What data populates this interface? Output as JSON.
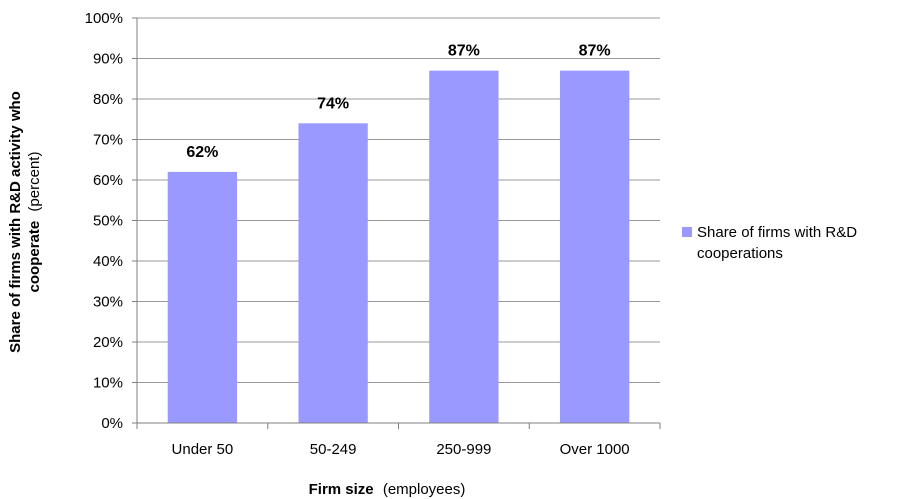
{
  "chart_data": {
    "type": "bar",
    "categories": [
      "Under 50",
      "50-249",
      "250-999",
      "Over 1000"
    ],
    "series": [
      {
        "name": "Share of firms with R&D cooperations",
        "values": [
          62,
          74,
          87,
          87
        ],
        "color": "#9999ff"
      }
    ],
    "data_labels": [
      "62%",
      "74%",
      "87%",
      "87%"
    ],
    "xlabel": {
      "bold": "Firm size",
      "normal": "(employees)"
    },
    "ylabel": {
      "line1": "Share of firms with R&D activity who",
      "line2_bold": "cooperate",
      "line2_normal": "(percent)"
    },
    "yticks": [
      "0%",
      "10%",
      "20%",
      "30%",
      "40%",
      "50%",
      "60%",
      "70%",
      "80%",
      "90%",
      "100%"
    ],
    "ylim": [
      0,
      100
    ],
    "grid": true,
    "legend": {
      "position": "right",
      "lines": [
        "Share of firms with R&D",
        "cooperations"
      ]
    }
  }
}
